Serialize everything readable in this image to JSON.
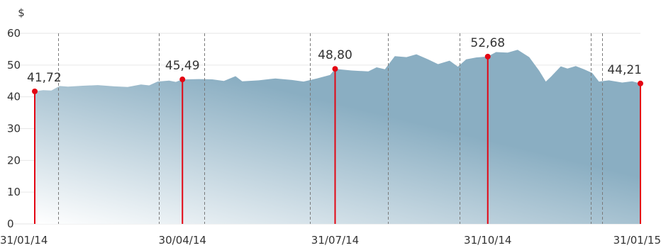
{
  "chart_data": {
    "type": "area",
    "y_unit": "$",
    "ylim": [
      0,
      60
    ],
    "y_ticks": [
      0,
      10,
      20,
      30,
      40,
      50,
      60
    ],
    "x_range": [
      "2014-01-31",
      "2015-01-31"
    ],
    "x_ticks": [
      {
        "date": "2014-01-31",
        "label": "31/01/14"
      },
      {
        "date": "2014-04-30",
        "label": "30/04/14"
      },
      {
        "date": "2014-07-31",
        "label": "31/07/14"
      },
      {
        "date": "2014-10-31",
        "label": "31/10/14"
      },
      {
        "date": "2015-01-31",
        "label": "31/01/15"
      }
    ],
    "grid": "horizontal",
    "series": [
      {
        "points": [
          [
            "2014-01-31",
            41.72
          ],
          [
            "2014-02-05",
            42.1
          ],
          [
            "2014-02-10",
            42.0
          ],
          [
            "2014-02-15",
            43.4
          ],
          [
            "2014-02-20",
            43.2
          ],
          [
            "2014-03-01",
            43.5
          ],
          [
            "2014-03-10",
            43.7
          ],
          [
            "2014-03-20",
            43.3
          ],
          [
            "2014-03-28",
            43.1
          ],
          [
            "2014-04-05",
            43.9
          ],
          [
            "2014-04-10",
            43.6
          ],
          [
            "2014-04-15",
            44.8
          ],
          [
            "2014-04-22",
            45.1
          ],
          [
            "2014-04-26",
            44.7
          ],
          [
            "2014-04-30",
            45.49
          ],
          [
            "2014-05-10",
            45.6
          ],
          [
            "2014-05-18",
            45.5
          ],
          [
            "2014-05-25",
            45.0
          ],
          [
            "2014-06-01",
            46.5
          ],
          [
            "2014-06-05",
            44.9
          ],
          [
            "2014-06-15",
            45.2
          ],
          [
            "2014-06-25",
            45.8
          ],
          [
            "2014-07-05",
            45.3
          ],
          [
            "2014-07-12",
            44.8
          ],
          [
            "2014-07-20",
            45.8
          ],
          [
            "2014-07-28",
            46.9
          ],
          [
            "2014-07-31",
            48.8
          ],
          [
            "2014-08-10",
            48.3
          ],
          [
            "2014-08-20",
            48.0
          ],
          [
            "2014-08-25",
            49.3
          ],
          [
            "2014-08-30",
            48.7
          ],
          [
            "2014-09-05",
            52.8
          ],
          [
            "2014-09-12",
            52.5
          ],
          [
            "2014-09-18",
            53.4
          ],
          [
            "2014-09-25",
            51.8
          ],
          [
            "2014-10-01",
            50.3
          ],
          [
            "2014-10-08",
            51.4
          ],
          [
            "2014-10-13",
            49.5
          ],
          [
            "2014-10-18",
            51.8
          ],
          [
            "2014-10-24",
            52.4
          ],
          [
            "2014-10-31",
            52.68
          ],
          [
            "2014-11-05",
            54.1
          ],
          [
            "2014-11-12",
            53.9
          ],
          [
            "2014-11-18",
            54.8
          ],
          [
            "2014-11-25",
            52.5
          ],
          [
            "2014-12-01",
            48.2
          ],
          [
            "2014-12-05",
            44.8
          ],
          [
            "2014-12-08",
            46.3
          ],
          [
            "2014-12-14",
            49.6
          ],
          [
            "2014-12-18",
            48.9
          ],
          [
            "2014-12-23",
            49.7
          ],
          [
            "2014-12-28",
            48.7
          ],
          [
            "2015-01-02",
            47.5
          ],
          [
            "2015-01-06",
            44.8
          ],
          [
            "2015-01-12",
            45.2
          ],
          [
            "2015-01-20",
            44.5
          ],
          [
            "2015-01-26",
            44.9
          ],
          [
            "2015-01-31",
            44.21
          ]
        ]
      }
    ],
    "highlights": [
      {
        "date": "2014-01-31",
        "value": 41.72,
        "label": "41,72"
      },
      {
        "date": "2014-04-30",
        "value": 45.49,
        "label": "45,49"
      },
      {
        "date": "2014-07-31",
        "value": 48.8,
        "label": "48,80"
      },
      {
        "date": "2014-10-31",
        "value": 52.68,
        "label": "52,68"
      },
      {
        "date": "2015-01-31",
        "value": 44.21,
        "label": "44,21"
      }
    ],
    "event_markers": [
      "2014-02-14",
      "2014-04-16",
      "2014-05-13",
      "2014-07-16",
      "2014-09-01",
      "2014-10-14",
      "2015-01-01",
      "2015-01-08"
    ],
    "colors": {
      "area": "#8aaec2",
      "area_light": "#ffffff",
      "highlight": "#e30613",
      "marker": "#7a7a7a",
      "grid": "#e6e6e6"
    }
  }
}
